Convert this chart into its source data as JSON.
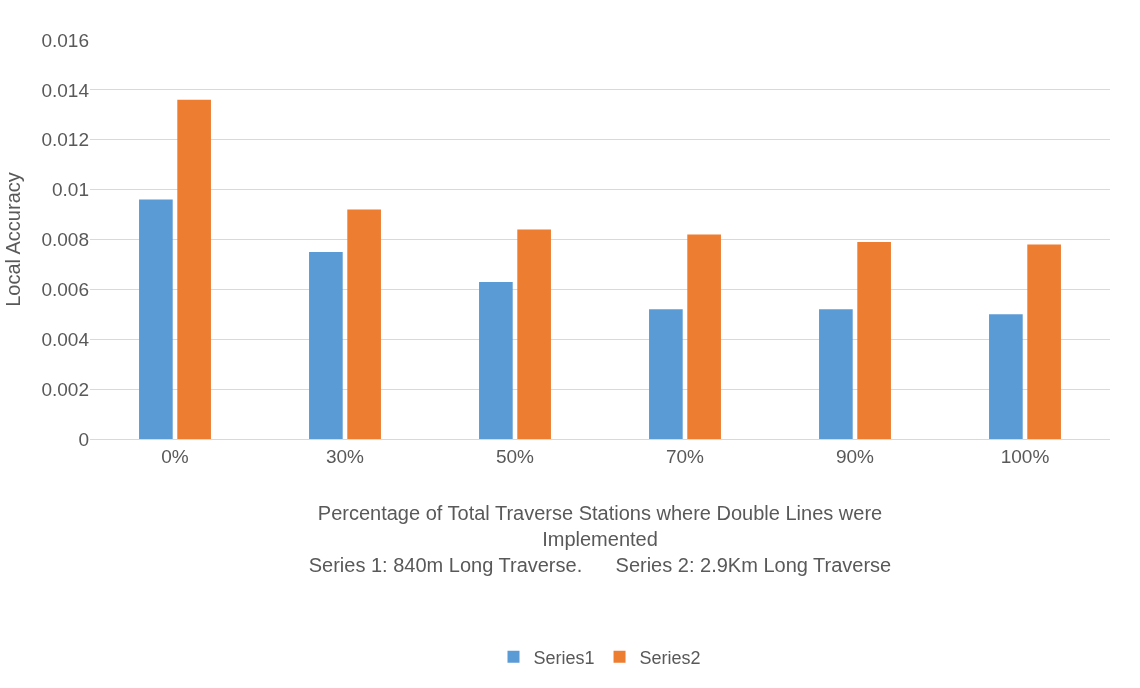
{
  "chart_data": {
    "type": "bar",
    "xlabel": "Percentage of Total Traverse Stations where Double Lines were\nImplemented\nSeries 1: 840m Long Traverse.      Series 2: 2.9Km Long Traverse",
    "ylabel": "Local Accuracy",
    "categories": [
      "0%",
      "30%",
      "50%",
      "70%",
      "90%",
      "100%"
    ],
    "series": [
      {
        "name": "Series1",
        "color": "#5b9bd5",
        "values": [
          0.0096,
          0.0075,
          0.0063,
          0.0052,
          0.0052,
          0.005
        ]
      },
      {
        "name": "Series2",
        "color": "#ed7d31",
        "values": [
          0.0136,
          0.0092,
          0.0084,
          0.0082,
          0.0079,
          0.0078
        ]
      }
    ],
    "ylim": [
      0,
      0.016
    ],
    "yticks": [
      0,
      0.002,
      0.004,
      0.006,
      0.008,
      0.01,
      0.012,
      0.014,
      0.016
    ],
    "grid": "y",
    "legend": "bottom"
  }
}
